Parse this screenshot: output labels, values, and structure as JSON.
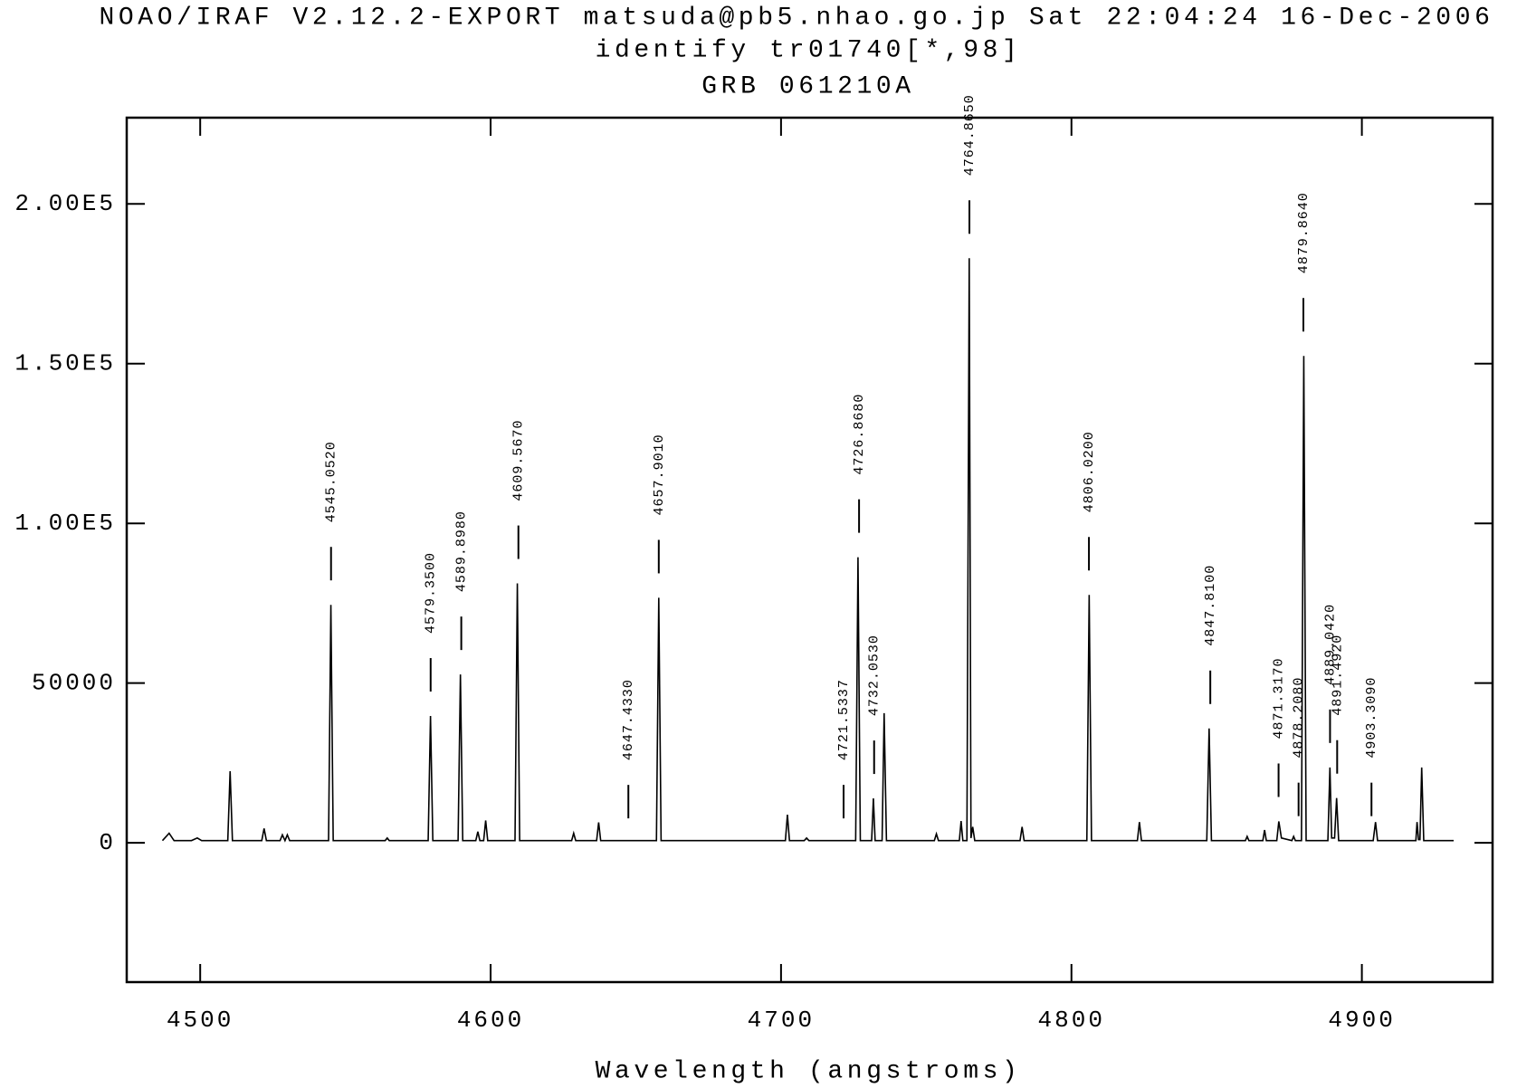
{
  "chart_data": {
    "type": "line",
    "title": [
      "NOAO/IRAF V2.12.2-EXPORT matsuda@pb5.nhao.go.jp Sat 22:04:24 16-Dec-2006",
      "identify tr01740[*,98]",
      "GRB 061210A"
    ],
    "x_label": "Wavelength (angstroms)",
    "xlim": [
      4474.7,
      4945
    ],
    "ylim": [
      -43600,
      227000
    ],
    "xticks": [
      4500,
      4600,
      4700,
      4800,
      4900
    ],
    "yticks": [
      0,
      50000,
      {
        "value": 100000,
        "label": "1.00E5"
      },
      {
        "value": 150000,
        "label": "1.50E5"
      },
      {
        "value": 200000,
        "label": "2.00E5"
      }
    ],
    "color": "#000000",
    "x": [
      4487,
      4489.3,
      4491,
      4497,
      4499,
      4500.5,
      4509.5,
      4510.3,
      4511.1,
      4521.2,
      4522,
      4522.8,
      4527.5,
      4528.3,
      4529.2,
      4530,
      4530.8,
      4544.2,
      4545,
      4545.8,
      4563.7,
      4564.4,
      4565.1,
      4578.5,
      4579.3,
      4580.1,
      4588.8,
      4589.6,
      4590.4,
      4594.9,
      4595.6,
      4596.3,
      4597.6,
      4598.3,
      4599,
      4608.4,
      4609.2,
      4610,
      4627.9,
      4628.6,
      4629.3,
      4636.5,
      4637.2,
      4637.9,
      4657.1,
      4657.9,
      4658.7,
      4701.5,
      4702.2,
      4702.9,
      4708,
      4708.8,
      4709.6,
      4725.7,
      4726.5,
      4727.3,
      4731.2,
      4731.8,
      4732.4,
      4734.8,
      4735.5,
      4736.3,
      4752.8,
      4753.5,
      4754.2,
      4761.4,
      4762,
      4762.6,
      4764,
      4764.8,
      4765.4,
      4766,
      4766.7,
      4782.3,
      4783,
      4783.7,
      4805.3,
      4806.1,
      4806.9,
      4822.7,
      4823.4,
      4824.1,
      4846.6,
      4847.4,
      4848.2,
      4859.9,
      4860.5,
      4861.1,
      4865.9,
      4866.5,
      4867.1,
      4870.7,
      4871.4,
      4872.3,
      4875.9,
      4876.5,
      4877.1,
      4879.2,
      4880,
      4880.8,
      4888.3,
      4889,
      4889.6,
      4890.6,
      4891.3,
      4892,
      4903.9,
      4904.7,
      4905.4,
      4918.6,
      4919,
      4919.5,
      4920,
      4920.6,
      4921.3,
      4931.6
    ],
    "values": [
      700,
      3000,
      700,
      700,
      1500,
      700,
      700,
      22400,
      700,
      700,
      4500,
      700,
      700,
      2500,
      700,
      2500,
      700,
      700,
      74500,
      700,
      700,
      1500,
      700,
      700,
      39700,
      700,
      700,
      52700,
      700,
      700,
      3500,
      700,
      700,
      7000,
      700,
      700,
      81200,
      700,
      700,
      3000,
      700,
      700,
      6400,
      700,
      700,
      76700,
      700,
      700,
      8800,
      700,
      700,
      1500,
      700,
      700,
      89400,
      700,
      700,
      13900,
      700,
      700,
      40600,
      700,
      700,
      2800,
      700,
      700,
      6800,
      700,
      700,
      183000,
      1500,
      5000,
      700,
      700,
      5000,
      700,
      700,
      77600,
      700,
      700,
      6500,
      700,
      700,
      35800,
      700,
      700,
      2000,
      700,
      700,
      4000,
      700,
      700,
      6700,
      1500,
      700,
      2000,
      700,
      700,
      152400,
      700,
      700,
      23600,
      1500,
      1500,
      14000,
      700,
      700,
      6500,
      700,
      700,
      6500,
      1000,
      1000,
      23600,
      700,
      700
    ],
    "line_ids": [
      {
        "value": 4545.052,
        "label": "4545.0520"
      },
      {
        "value": 4579.35,
        "label": "4579.3500"
      },
      {
        "value": 4589.898,
        "label": "4589.8980"
      },
      {
        "value": 4609.567,
        "label": "4609.5670"
      },
      {
        "value": 4647.433,
        "label": "4647.4330"
      },
      {
        "value": 4657.901,
        "label": "4657.9010"
      },
      {
        "value": 4721.5337,
        "label": "4721.5337"
      },
      {
        "value": 4726.868,
        "label": "4726.8680"
      },
      {
        "value": 4732.053,
        "label": "4732.0530"
      },
      {
        "value": 4764.865,
        "label": "4764.8650"
      },
      {
        "value": 4806.02,
        "label": "4806.0200"
      },
      {
        "value": 4847.81,
        "label": "4847.8100"
      },
      {
        "value": 4871.317,
        "label": "4871.3170"
      },
      {
        "value": 4878.208,
        "label": "4878.2080"
      },
      {
        "value": 4879.864,
        "label": "4879.8640"
      },
      {
        "value": 4889.042,
        "label": "4889.0420"
      },
      {
        "value": 4891.492,
        "label": "4891.4920"
      },
      {
        "value": 4903.309,
        "label": "4903.3090"
      }
    ]
  }
}
